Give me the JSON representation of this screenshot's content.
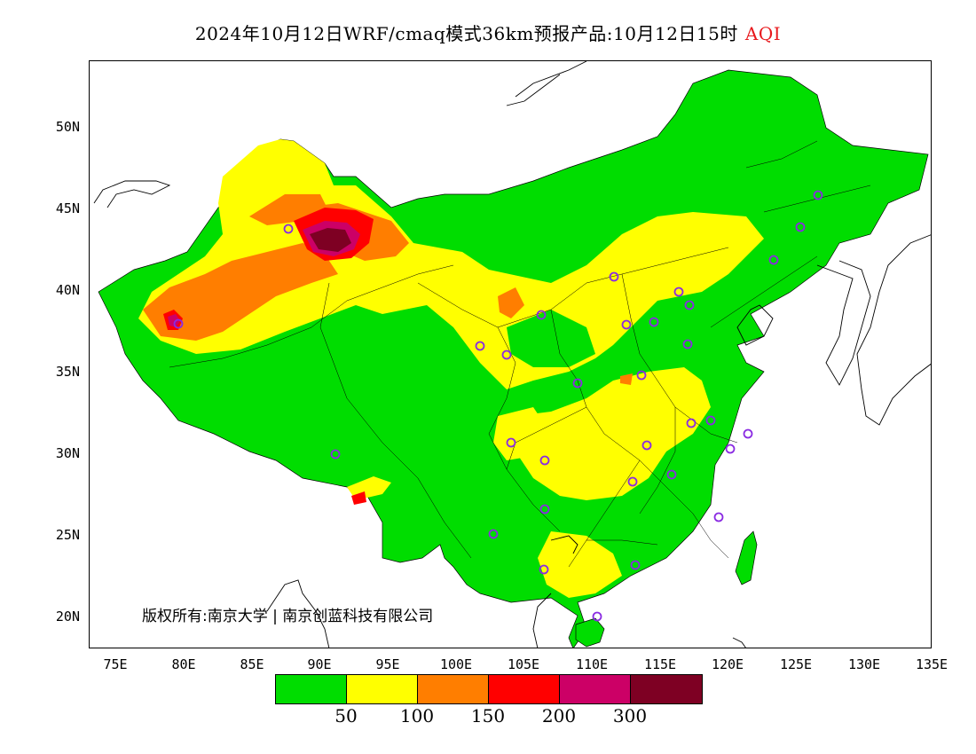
{
  "title": {
    "prefix": "2024年10月12日WRF/cmaq模式36km预报产品:10月12日15时",
    "variable": "AQI",
    "variable_color": "#e8191d"
  },
  "map": {
    "region": "China",
    "lat_ticks": [
      "50N",
      "45N",
      "40N",
      "35N",
      "30N",
      "25N",
      "20N"
    ],
    "lon_ticks": [
      "75E",
      "80E",
      "85E",
      "90E",
      "95E",
      "100E",
      "105E",
      "110E",
      "115E",
      "120E",
      "125E",
      "130E",
      "135E"
    ],
    "lon_range": [
      73,
      135
    ],
    "lat_range": [
      18,
      54
    ],
    "station_marker_color": "#8a2be2"
  },
  "copyright": "版权所有:南京大学 | 南京创蓝科技有限公司",
  "legend": {
    "colors": [
      "#00dd00",
      "#ffff00",
      "#ff7e00",
      "#ff0000",
      "#cc0066",
      "#7e0023"
    ],
    "labels": [
      "50",
      "100",
      "150",
      "200",
      "300"
    ]
  }
}
